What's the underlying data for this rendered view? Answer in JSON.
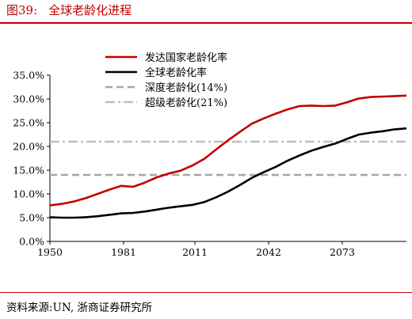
{
  "header": {
    "figure_number": "图39:",
    "title": "全球老龄化进程"
  },
  "footer": {
    "source": "资料来源:UN, 浙商证券研究所"
  },
  "colors": {
    "accent": "#c00000",
    "developed": "#c00000",
    "global": "#000000",
    "deep_aging": "#a6a6a6",
    "super_aging": "#bfbfbf"
  },
  "chart_data": {
    "type": "line",
    "xlim": [
      1950,
      2100
    ],
    "ylim": [
      0,
      35
    ],
    "y_tick_labels": [
      "0.0%",
      "5.0%",
      "10.0%",
      "15.0%",
      "20.0%",
      "25.0%",
      "30.0%",
      "35.0%"
    ],
    "y_tick_values": [
      0,
      5,
      10,
      15,
      20,
      25,
      30,
      35
    ],
    "x_tick_labels": [
      "1950",
      "1981",
      "2011",
      "2042",
      "2073"
    ],
    "x_tick_values": [
      1950,
      1981,
      2011,
      2042,
      2073
    ],
    "grid": false,
    "legend_position": "top-left",
    "series": [
      {
        "name": "发达国家老龄化率",
        "style": "solid",
        "x": [
          1950,
          1955,
          1960,
          1965,
          1970,
          1975,
          1980,
          1985,
          1990,
          1995,
          2000,
          2005,
          2010,
          2015,
          2020,
          2025,
          2030,
          2035,
          2040,
          2045,
          2050,
          2055,
          2060,
          2065,
          2070,
          2075,
          2080,
          2085,
          2090,
          2095,
          2100
        ],
        "values": [
          7.6,
          7.9,
          8.4,
          9.1,
          10.0,
          10.9,
          11.7,
          11.5,
          12.4,
          13.5,
          14.3,
          14.9,
          16.0,
          17.4,
          19.4,
          21.3,
          23.1,
          24.8,
          25.9,
          26.9,
          27.8,
          28.5,
          28.6,
          28.5,
          28.6,
          29.3,
          30.1,
          30.4,
          30.5,
          30.6,
          30.7
        ]
      },
      {
        "name": "全球老龄化率",
        "style": "solid",
        "x": [
          1950,
          1955,
          1960,
          1965,
          1970,
          1975,
          1980,
          1985,
          1990,
          1995,
          2000,
          2005,
          2010,
          2015,
          2020,
          2025,
          2030,
          2035,
          2040,
          2045,
          2050,
          2055,
          2060,
          2065,
          2070,
          2075,
          2080,
          2085,
          2090,
          2095,
          2100
        ],
        "values": [
          5.1,
          5.0,
          5.0,
          5.1,
          5.3,
          5.6,
          5.9,
          6.0,
          6.3,
          6.7,
          7.1,
          7.4,
          7.7,
          8.3,
          9.3,
          10.5,
          11.9,
          13.4,
          14.6,
          15.7,
          17.0,
          18.1,
          19.1,
          19.9,
          20.6,
          21.6,
          22.5,
          22.9,
          23.2,
          23.6,
          23.8
        ]
      },
      {
        "name": "深度老龄化(14%)",
        "style": "dashed",
        "x": [
          1950,
          2100
        ],
        "values": [
          14,
          14
        ]
      },
      {
        "name": "超级老龄化(21%)",
        "style": "dash-dot",
        "x": [
          1950,
          2100
        ],
        "values": [
          21,
          21
        ]
      }
    ]
  }
}
